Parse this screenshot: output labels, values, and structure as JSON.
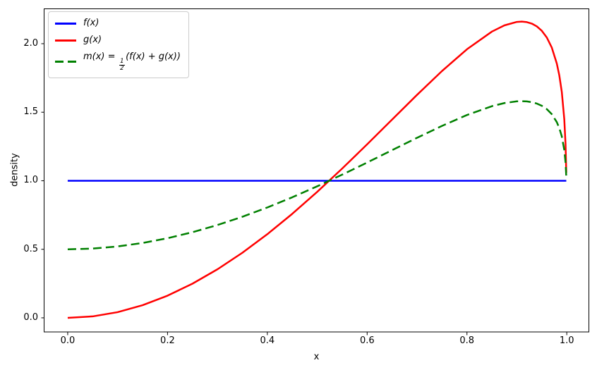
{
  "chart_data": {
    "type": "line",
    "title": "",
    "xlabel": "x",
    "ylabel": "density",
    "xlim": [
      -0.048,
      1.045
    ],
    "ylim": [
      -0.103,
      2.257
    ],
    "grid": false,
    "xticks": {
      "values": [
        0,
        0.2,
        0.4,
        0.6,
        0.8,
        1.0
      ],
      "labels": [
        "0.0",
        "0.2",
        "0.4",
        "0.6",
        "0.8",
        "1.0"
      ]
    },
    "yticks": {
      "values": [
        0,
        0.5,
        1.0,
        1.5,
        2.0
      ],
      "labels": [
        "0.0",
        "0.5",
        "1.0",
        "1.5",
        "2.0"
      ]
    },
    "x": [
      0,
      0.05,
      0.1,
      0.15,
      0.2,
      0.25,
      0.3,
      0.35,
      0.4,
      0.45,
      0.5,
      0.55,
      0.6,
      0.65,
      0.7,
      0.75,
      0.8,
      0.85,
      0.875,
      0.9,
      0.91,
      0.92,
      0.93,
      0.94,
      0.95,
      0.96,
      0.97,
      0.98,
      0.985,
      0.99,
      0.995,
      0.9975,
      0.999
    ],
    "series": [
      {
        "id": "f",
        "name": "f(x)",
        "color": "#0000ff",
        "style": "solid",
        "values": [
          1,
          1,
          1,
          1,
          1,
          1,
          1,
          1,
          1,
          1,
          1,
          1,
          1,
          1,
          1,
          1,
          1,
          1,
          1,
          1,
          1,
          1,
          1,
          1,
          1,
          1,
          1,
          1,
          1,
          1,
          1,
          1,
          1
        ]
      },
      {
        "id": "g",
        "name": "g(x)",
        "color": "#ff0000",
        "style": "solid",
        "values": [
          0,
          0.0105,
          0.0414,
          0.092,
          0.1616,
          0.2492,
          0.354,
          0.4747,
          0.6102,
          0.759,
          0.9193,
          1.0892,
          1.266,
          1.4466,
          1.6268,
          1.8007,
          1.9593,
          2.0883,
          2.1336,
          2.1588,
          2.161,
          2.1573,
          2.1464,
          2.1262,
          2.094,
          2.0449,
          1.9711,
          1.8552,
          1.7693,
          1.6482,
          1.4493,
          1.2679,
          1.0589
        ]
      },
      {
        "id": "m",
        "name": "m(x) = 1/2 (f(x) + g(x))",
        "color": "#008000",
        "style": "dashed",
        "values": [
          0.5,
          0.5053,
          0.5207,
          0.546,
          0.5808,
          0.6246,
          0.677,
          0.7374,
          0.8051,
          0.8795,
          0.9597,
          1.0446,
          1.133,
          1.2233,
          1.3134,
          1.4003,
          1.4797,
          1.5441,
          1.5668,
          1.5794,
          1.5805,
          1.5787,
          1.5732,
          1.5631,
          1.547,
          1.5225,
          1.4855,
          1.4276,
          1.3847,
          1.3241,
          1.2247,
          1.1339,
          1.0295
        ]
      }
    ],
    "legend": {
      "position": "upper-left",
      "items": [
        {
          "label": "f(x)"
        },
        {
          "label": "g(x)"
        },
        {
          "label_prefix": "m(x) = ",
          "frac_num": "1",
          "frac_den": "2",
          "label_suffix": "(f(x) + g(x))"
        }
      ]
    }
  }
}
